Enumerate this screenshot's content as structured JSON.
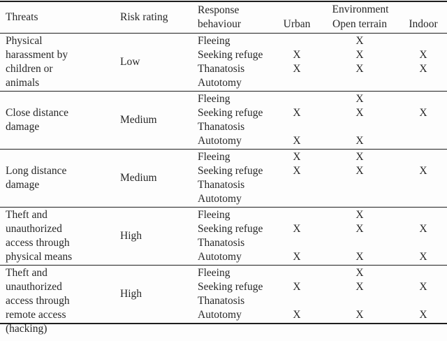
{
  "table": {
    "header": {
      "threats": "Threats",
      "risk_rating": "Risk rating",
      "response_behaviour": "Response behaviour",
      "environment": "Environment",
      "env_columns": [
        "Urban",
        "Open terrain",
        "Indoor"
      ]
    },
    "mark_symbol": "X",
    "responses": [
      "Fleeing",
      "Seeking refuge",
      "Thanatosis",
      "Autotomy"
    ],
    "blocks": [
      {
        "threat": "Physical harassment by children or animals",
        "threat_lines": [
          "Physical",
          "harassment by",
          "children or",
          "animals"
        ],
        "risk_rating": "Low",
        "marks": [
          [
            "",
            "X",
            ""
          ],
          [
            "X",
            "X",
            "X"
          ],
          [
            "X",
            "X",
            "X"
          ],
          [
            "",
            "",
            ""
          ]
        ]
      },
      {
        "threat": "Close distance damage",
        "threat_lines": [
          "Close distance",
          "damage"
        ],
        "risk_rating": "Medium",
        "marks": [
          [
            "",
            "X",
            ""
          ],
          [
            "X",
            "X",
            "X"
          ],
          [
            "",
            "",
            ""
          ],
          [
            "X",
            "X",
            ""
          ]
        ]
      },
      {
        "threat": "Long distance damage",
        "threat_lines": [
          "Long distance",
          "damage"
        ],
        "risk_rating": "Medium",
        "marks": [
          [
            "X",
            "X",
            ""
          ],
          [
            "X",
            "X",
            "X"
          ],
          [
            "",
            "",
            ""
          ],
          [
            "",
            "",
            ""
          ]
        ]
      },
      {
        "threat": "Theft and unauthorized access through physical means",
        "threat_lines": [
          "Theft and",
          "unauthorized",
          "access through",
          "physical means"
        ],
        "risk_rating": "High",
        "marks": [
          [
            "",
            "X",
            ""
          ],
          [
            "X",
            "X",
            "X"
          ],
          [
            "",
            "",
            ""
          ],
          [
            "X",
            "X",
            "X"
          ]
        ]
      },
      {
        "threat": "Theft and unauthorized access through remote access (hacking)",
        "threat_lines": [
          "Theft and",
          "unauthorized",
          "access through",
          "remote access",
          "(hacking)"
        ],
        "risk_rating": "High",
        "marks": [
          [
            "",
            "X",
            ""
          ],
          [
            "X",
            "X",
            "X"
          ],
          [
            "",
            "",
            ""
          ],
          [
            "X",
            "X",
            "X"
          ]
        ]
      }
    ]
  },
  "colors": {
    "text": "#272727",
    "rule": "#1e1e1e",
    "background": "#fdfdfd"
  }
}
